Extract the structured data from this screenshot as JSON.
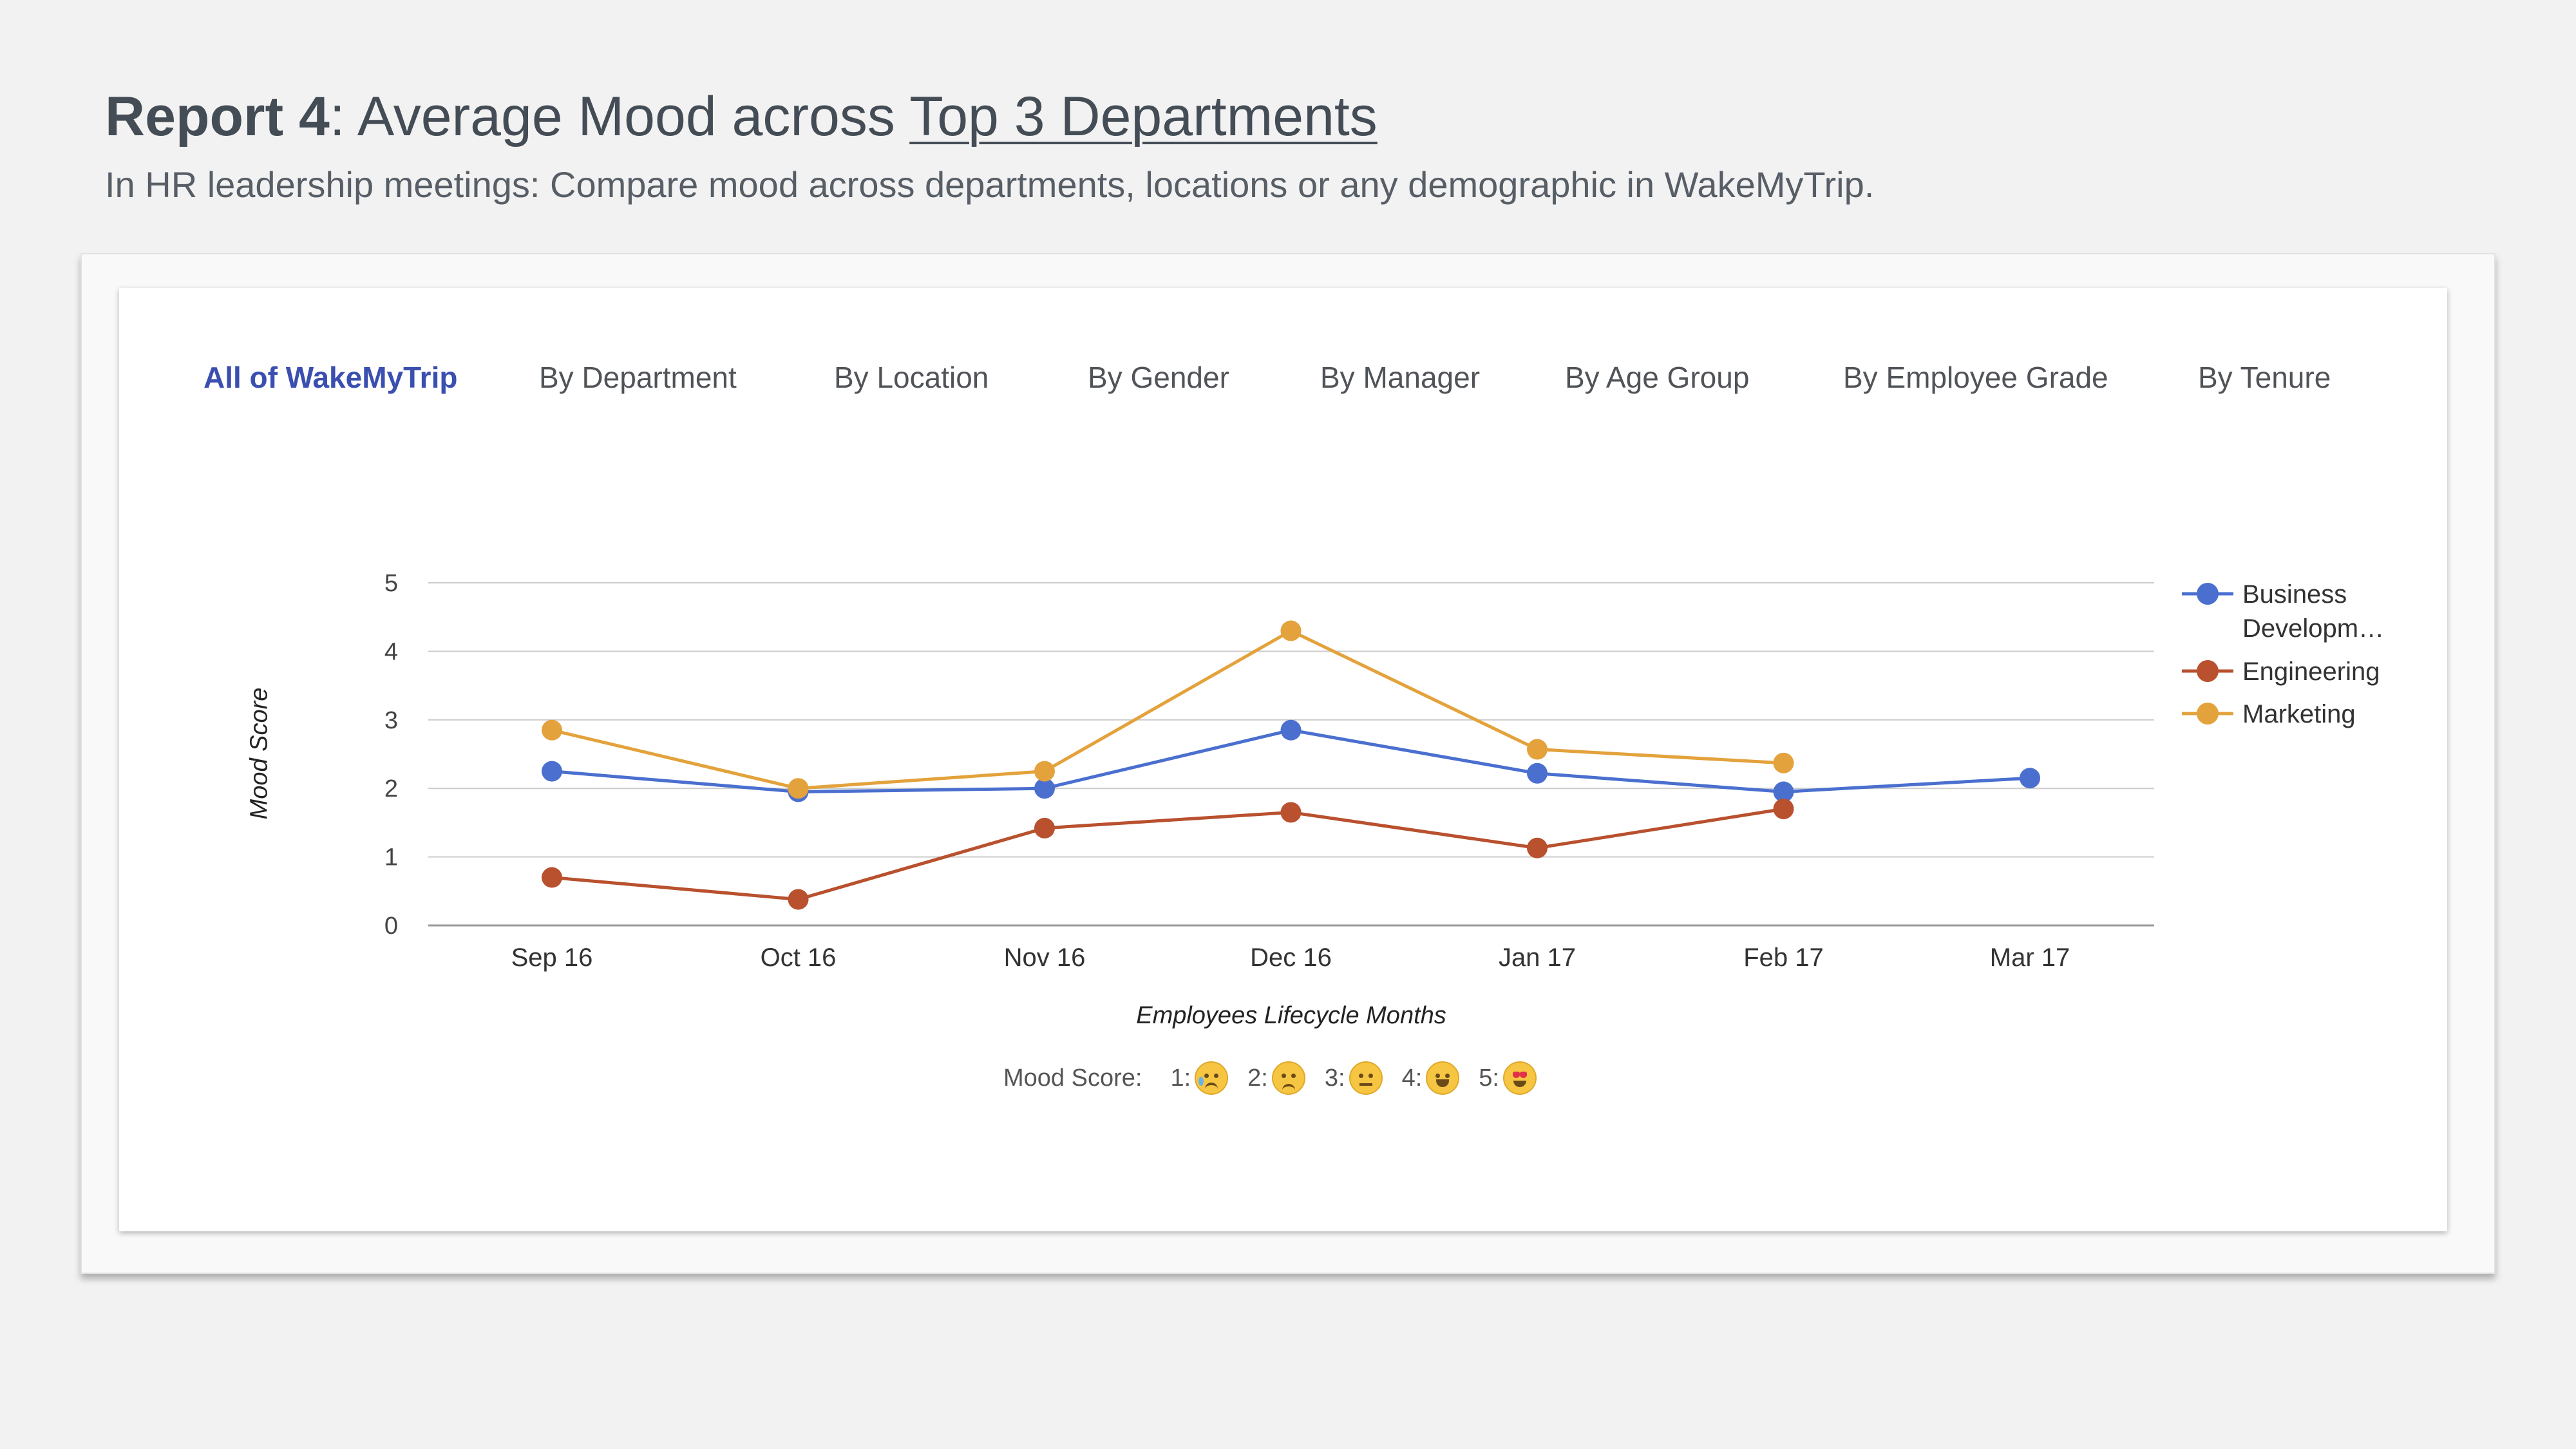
{
  "header": {
    "title_bold": "Report 4",
    "title_rest": ": Average Mood across ",
    "title_underlined": "Top 3 Departments",
    "subtitle": "In HR leadership meetings: Compare mood across departments, locations or any demographic in WakeMyTrip."
  },
  "tabs": [
    {
      "label": "All of WakeMyTrip",
      "active": true
    },
    {
      "label": "By Department",
      "active": false
    },
    {
      "label": "By Location",
      "active": false
    },
    {
      "label": "By Gender",
      "active": false
    },
    {
      "label": "By Manager",
      "active": false
    },
    {
      "label": "By Age Group",
      "active": false
    },
    {
      "label": "By Employee Grade",
      "active": false
    },
    {
      "label": "By Tenure",
      "active": false
    }
  ],
  "chart_data": {
    "type": "line",
    "title": "",
    "xlabel": "Employees Lifecycle Months",
    "ylabel": "Mood Score",
    "categories": [
      "Sep 16",
      "Oct 16",
      "Nov 16",
      "Dec 16",
      "Jan 17",
      "Feb 17",
      "Mar 17"
    ],
    "ylim": [
      0,
      5
    ],
    "yticks": [
      "0",
      "1",
      "2",
      "3",
      "4",
      "5"
    ],
    "grid": true,
    "legend_position": "right",
    "series": [
      {
        "name": "Business Developm…",
        "name_lines": [
          "Business",
          "Developm…"
        ],
        "color": "#4a6fcf",
        "values": [
          2.25,
          1.95,
          2.0,
          2.85,
          2.22,
          1.95,
          2.15
        ]
      },
      {
        "name": "Engineering",
        "name_lines": [
          "Engineering"
        ],
        "color": "#b9502e",
        "values": [
          0.7,
          0.38,
          1.42,
          1.65,
          1.13,
          1.7,
          null
        ]
      },
      {
        "name": "Marketing",
        "name_lines": [
          "Marketing"
        ],
        "color": "#e3a23b",
        "values": [
          2.85,
          2.0,
          2.25,
          4.3,
          2.57,
          2.37,
          null
        ]
      }
    ]
  },
  "mood_scale": {
    "label": "Mood Score:",
    "items": [
      {
        "num": "1:",
        "icon": "crying-face-icon"
      },
      {
        "num": "2:",
        "icon": "worried-face-icon"
      },
      {
        "num": "3:",
        "icon": "neutral-face-icon"
      },
      {
        "num": "4:",
        "icon": "grinning-face-icon"
      },
      {
        "num": "5:",
        "icon": "heart-eyes-face-icon"
      }
    ]
  }
}
